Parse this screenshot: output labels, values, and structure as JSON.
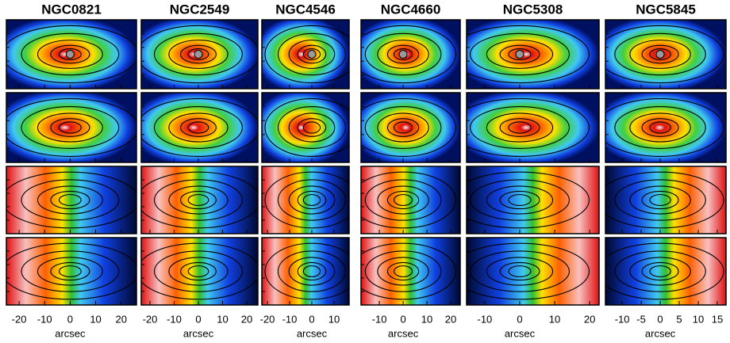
{
  "panels": [
    {
      "title": "NGC0821",
      "xlim": [
        -25,
        26
      ],
      "xticks": [
        -20,
        -10,
        0,
        10,
        20
      ],
      "xlabel": "arcsec"
    },
    {
      "title": "NGC2549",
      "xlim": [
        -23.6,
        24.6
      ],
      "xticks": [
        -20,
        -10,
        0,
        10,
        20
      ],
      "xlabel": "arcsec"
    },
    {
      "title": "NGC4546",
      "xlim": [
        -22.5,
        16.8
      ],
      "xticks": [
        -20,
        -10,
        0,
        10
      ],
      "xlabel": "arcsec"
    },
    {
      "title": "NGC4660",
      "xlim": [
        -17.7,
        24
      ],
      "xticks": [
        -10,
        0,
        10,
        20
      ],
      "xlabel": "arcsec"
    },
    {
      "title": "NGC5308",
      "xlim": [
        -15.2,
        22.7
      ],
      "xticks": [
        -10,
        0,
        10,
        20
      ],
      "xlabel": "arcsec"
    },
    {
      "title": "NGC5845",
      "xlim": [
        -14.4,
        17.3
      ],
      "xticks": [
        -10,
        -5,
        0,
        5,
        10,
        15
      ],
      "xlabel": "arcsec"
    }
  ]
}
